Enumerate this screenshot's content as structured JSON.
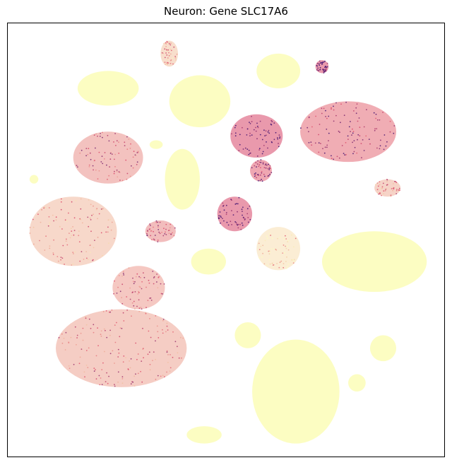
{
  "chart_data": {
    "type": "scatter",
    "title": "Neuron: Gene SLC17A6",
    "xlabel": "",
    "ylabel": "",
    "axes_ticks": false,
    "grid": false,
    "legend": "none",
    "colormap": "magma_r",
    "colors": {
      "low": "#fcfdbf",
      "mid": "#de4968",
      "high": "#3b0f70",
      "frame": "#000000"
    },
    "x_range": [
      0,
      1
    ],
    "y_range": [
      0,
      1
    ],
    "clusters": [
      {
        "x": 0.62,
        "y": 0.89,
        "rx": 0.05,
        "ry": 0.04,
        "expression": 0.0
      },
      {
        "x": 0.72,
        "y": 0.9,
        "rx": 0.015,
        "ry": 0.015,
        "expression": 0.95
      },
      {
        "x": 0.37,
        "y": 0.93,
        "rx": 0.02,
        "ry": 0.03,
        "expression": 0.3
      },
      {
        "x": 0.23,
        "y": 0.85,
        "rx": 0.07,
        "ry": 0.04,
        "expression": 0.05
      },
      {
        "x": 0.44,
        "y": 0.82,
        "rx": 0.07,
        "ry": 0.06,
        "expression": 0.0
      },
      {
        "x": 0.57,
        "y": 0.74,
        "rx": 0.06,
        "ry": 0.05,
        "expression": 0.95
      },
      {
        "x": 0.78,
        "y": 0.75,
        "rx": 0.11,
        "ry": 0.07,
        "expression": 0.75
      },
      {
        "x": 0.58,
        "y": 0.66,
        "rx": 0.025,
        "ry": 0.025,
        "expression": 0.8
      },
      {
        "x": 0.52,
        "y": 0.56,
        "rx": 0.04,
        "ry": 0.04,
        "expression": 0.95
      },
      {
        "x": 0.23,
        "y": 0.69,
        "rx": 0.08,
        "ry": 0.06,
        "expression": 0.55
      },
      {
        "x": 0.4,
        "y": 0.64,
        "rx": 0.04,
        "ry": 0.07,
        "expression": 0.0
      },
      {
        "x": 0.15,
        "y": 0.52,
        "rx": 0.1,
        "ry": 0.08,
        "expression": 0.35
      },
      {
        "x": 0.35,
        "y": 0.52,
        "rx": 0.035,
        "ry": 0.025,
        "expression": 0.6
      },
      {
        "x": 0.46,
        "y": 0.45,
        "rx": 0.04,
        "ry": 0.03,
        "expression": 0.0
      },
      {
        "x": 0.62,
        "y": 0.48,
        "rx": 0.05,
        "ry": 0.05,
        "expression": 0.15
      },
      {
        "x": 0.84,
        "y": 0.45,
        "rx": 0.12,
        "ry": 0.07,
        "expression": 0.0
      },
      {
        "x": 0.3,
        "y": 0.39,
        "rx": 0.06,
        "ry": 0.05,
        "expression": 0.5
      },
      {
        "x": 0.26,
        "y": 0.25,
        "rx": 0.15,
        "ry": 0.09,
        "expression": 0.45
      },
      {
        "x": 0.55,
        "y": 0.28,
        "rx": 0.03,
        "ry": 0.03,
        "expression": 0.0
      },
      {
        "x": 0.66,
        "y": 0.15,
        "rx": 0.1,
        "ry": 0.12,
        "expression": 0.0
      },
      {
        "x": 0.86,
        "y": 0.25,
        "rx": 0.03,
        "ry": 0.03,
        "expression": 0.0
      },
      {
        "x": 0.8,
        "y": 0.17,
        "rx": 0.02,
        "ry": 0.02,
        "expression": 0.0
      },
      {
        "x": 0.45,
        "y": 0.05,
        "rx": 0.04,
        "ry": 0.02,
        "expression": 0.0
      },
      {
        "x": 0.06,
        "y": 0.64,
        "rx": 0.01,
        "ry": 0.01,
        "expression": 0.0
      },
      {
        "x": 0.34,
        "y": 0.72,
        "rx": 0.015,
        "ry": 0.01,
        "expression": 0.0
      },
      {
        "x": 0.87,
        "y": 0.62,
        "rx": 0.03,
        "ry": 0.02,
        "expression": 0.4
      }
    ]
  }
}
